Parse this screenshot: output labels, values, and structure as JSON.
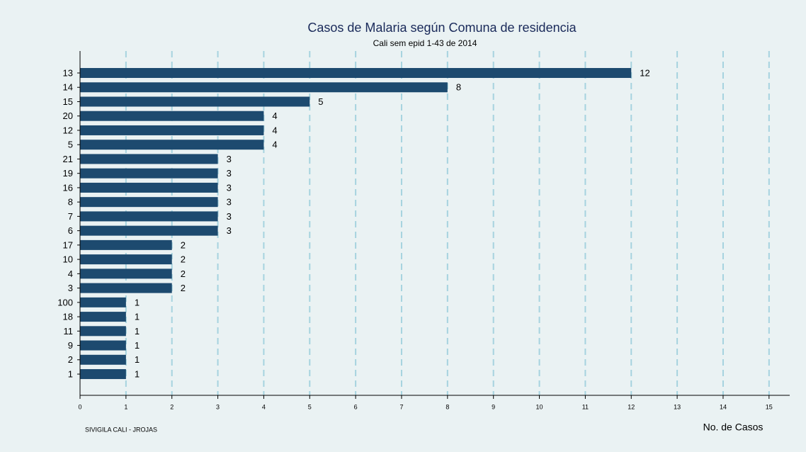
{
  "chart_data": {
    "type": "barh",
    "title": "Casos de Malaria según Comuna de residencia",
    "subtitle": "Cali sem epid 1-43 de 2014",
    "xlabel": "No. de Casos",
    "source": "SIVIGILA CALI -  JROJAS",
    "categories": [
      "13",
      "14",
      "15",
      "20",
      "12",
      "5",
      "21",
      "19",
      "16",
      "8",
      "7",
      "6",
      "17",
      "10",
      "4",
      "3",
      "100",
      "18",
      "11",
      "9",
      "2",
      "1"
    ],
    "values": [
      12,
      8,
      5,
      4,
      4,
      4,
      3,
      3,
      3,
      3,
      3,
      3,
      2,
      2,
      2,
      2,
      1,
      1,
      1,
      1,
      1,
      1
    ],
    "color": "#1d4a6f",
    "value_label_color": "#e8141c",
    "xlim": [
      0,
      15.45
    ],
    "xticks": [
      0,
      1,
      2,
      3,
      4,
      5,
      6,
      7,
      8,
      9,
      10,
      11,
      12,
      13,
      14,
      15
    ],
    "grid": true
  }
}
